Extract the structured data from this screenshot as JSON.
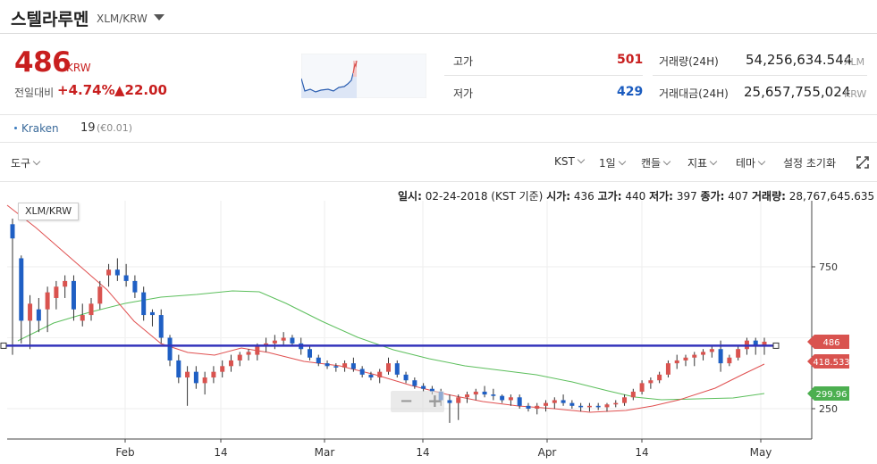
{
  "header": {
    "coin_name": "스텔라루멘",
    "pair": "XLM/KRW"
  },
  "price": {
    "current": "486",
    "unit": "KRW",
    "change_label": "전일대비",
    "change_rate": "+4.74%",
    "change_amount": "▲22.00"
  },
  "stats": {
    "high_label": "고가",
    "high_value": "501",
    "low_label": "저가",
    "low_value": "429",
    "volume_label": "거래량(24H)",
    "volume_value": "54,256,634.544",
    "volume_unit": "XLM",
    "amount_label": "거래대금(24H)",
    "amount_value": "25,657,755,024",
    "amount_unit": "KRW"
  },
  "exchange": {
    "name": "Kraken",
    "price": "19",
    "sub": "(€0.01)"
  },
  "toolbar": {
    "tools": "도구",
    "timezone": "KST",
    "interval": "1일",
    "style": "캔들",
    "indicator": "지표",
    "theme": "테마",
    "reset": "설정 초기화"
  },
  "info_bar": {
    "date_label": "일시:",
    "date": "02-24-2018 (KST 기준)",
    "open_label": "시가:",
    "open": "436",
    "high_label": "고가:",
    "high": "440",
    "low_label": "저가:",
    "low": "397",
    "close_label": "종가:",
    "close": "407",
    "volume_label": "거래량:",
    "volume": "28,767,645.635"
  },
  "colors": {
    "up": "#d9534f",
    "down": "#1f5fc4",
    "ma_short": "#e05050",
    "ma_long": "#5cbf5c",
    "hline": "#3333bb"
  },
  "icons": {
    "expand": "expand-icon",
    "dropdown": "chevron-down-icon"
  },
  "chart_data": {
    "type": "candlestick",
    "symbol_label": "XLM/KRW",
    "y_ticks": [
      750,
      250
    ],
    "x_ticks": [
      "Feb",
      "14",
      "Mar",
      "14",
      "Apr",
      "14",
      "May"
    ],
    "price_line": 472,
    "badges": [
      {
        "value": "486",
        "color": "#d9534f"
      },
      {
        "value": "418.533",
        "color": "#d9534f"
      },
      {
        "value": "299.96",
        "color": "#4caf50"
      }
    ],
    "ohlc": [
      [
        900,
        920,
        440,
        850
      ],
      [
        780,
        790,
        480,
        560
      ],
      [
        560,
        650,
        460,
        620
      ],
      [
        600,
        640,
        520,
        560
      ],
      [
        600,
        680,
        520,
        660
      ],
      [
        640,
        700,
        600,
        680
      ],
      [
        680,
        720,
        640,
        700
      ],
      [
        700,
        720,
        560,
        600
      ],
      [
        560,
        620,
        540,
        580
      ],
      [
        580,
        640,
        560,
        620
      ],
      [
        620,
        700,
        600,
        680
      ],
      [
        720,
        760,
        680,
        740
      ],
      [
        740,
        780,
        700,
        720
      ],
      [
        720,
        760,
        680,
        700
      ],
      [
        700,
        720,
        640,
        660
      ],
      [
        660,
        680,
        560,
        580
      ],
      [
        590,
        600,
        540,
        580
      ],
      [
        580,
        600,
        480,
        500
      ],
      [
        500,
        510,
        400,
        420
      ],
      [
        420,
        440,
        340,
        360
      ],
      [
        360,
        400,
        260,
        380
      ],
      [
        380,
        400,
        320,
        340
      ],
      [
        340,
        380,
        300,
        360
      ],
      [
        360,
        400,
        340,
        380
      ],
      [
        380,
        420,
        360,
        400
      ],
      [
        400,
        440,
        380,
        420
      ],
      [
        420,
        450,
        400,
        440
      ],
      [
        440,
        460,
        420,
        450
      ],
      [
        440,
        480,
        420,
        470
      ],
      [
        470,
        500,
        450,
        480
      ],
      [
        480,
        510,
        460,
        490
      ],
      [
        490,
        520,
        470,
        500
      ],
      [
        500,
        510,
        470,
        480
      ],
      [
        480,
        500,
        440,
        460
      ],
      [
        460,
        470,
        420,
        430
      ],
      [
        430,
        440,
        400,
        410
      ],
      [
        410,
        420,
        390,
        400
      ],
      [
        400,
        410,
        380,
        395
      ],
      [
        395,
        420,
        380,
        410
      ],
      [
        410,
        430,
        380,
        390
      ],
      [
        390,
        400,
        360,
        370
      ],
      [
        370,
        380,
        350,
        360
      ],
      [
        360,
        390,
        340,
        380
      ],
      [
        380,
        430,
        370,
        410
      ],
      [
        410,
        420,
        360,
        370
      ],
      [
        370,
        380,
        340,
        350
      ],
      [
        350,
        360,
        320,
        330
      ],
      [
        330,
        340,
        310,
        320
      ],
      [
        320,
        330,
        300,
        310
      ],
      [
        310,
        320,
        260,
        280
      ],
      [
        280,
        300,
        200,
        270
      ],
      [
        270,
        300,
        210,
        290
      ],
      [
        290,
        310,
        270,
        300
      ],
      [
        300,
        320,
        280,
        310
      ],
      [
        310,
        330,
        290,
        300
      ],
      [
        300,
        320,
        280,
        295
      ],
      [
        295,
        300,
        270,
        280
      ],
      [
        280,
        300,
        260,
        290
      ],
      [
        290,
        300,
        250,
        260
      ],
      [
        260,
        270,
        240,
        250
      ],
      [
        250,
        270,
        230,
        260
      ],
      [
        260,
        280,
        240,
        270
      ],
      [
        270,
        290,
        250,
        280
      ],
      [
        280,
        300,
        260,
        270
      ],
      [
        270,
        280,
        250,
        260
      ],
      [
        260,
        270,
        240,
        255
      ],
      [
        255,
        270,
        240,
        260
      ],
      [
        260,
        270,
        245,
        255
      ],
      [
        255,
        270,
        240,
        265
      ],
      [
        265,
        280,
        255,
        270
      ],
      [
        270,
        300,
        260,
        290
      ],
      [
        290,
        320,
        280,
        310
      ],
      [
        310,
        350,
        300,
        340
      ],
      [
        340,
        360,
        320,
        350
      ],
      [
        350,
        380,
        340,
        370
      ],
      [
        370,
        420,
        360,
        410
      ],
      [
        410,
        440,
        390,
        420
      ],
      [
        420,
        440,
        400,
        430
      ],
      [
        430,
        450,
        400,
        440
      ],
      [
        440,
        460,
        420,
        450
      ],
      [
        450,
        470,
        430,
        460
      ],
      [
        460,
        490,
        380,
        410
      ],
      [
        410,
        440,
        400,
        430
      ],
      [
        430,
        470,
        420,
        460
      ],
      [
        460,
        500,
        440,
        490
      ],
      [
        490,
        500,
        440,
        470
      ],
      [
        470,
        500,
        440,
        486
      ]
    ],
    "ma_short": [
      [
        8,
        230
      ],
      [
        40,
        255
      ],
      [
        80,
        290
      ],
      [
        120,
        325
      ],
      [
        150,
        360
      ],
      [
        180,
        385
      ],
      [
        210,
        395
      ],
      [
        240,
        398
      ],
      [
        270,
        390
      ],
      [
        300,
        395
      ],
      [
        340,
        405
      ],
      [
        380,
        410
      ],
      [
        420,
        420
      ],
      [
        460,
        432
      ],
      [
        500,
        442
      ],
      [
        540,
        450
      ],
      [
        580,
        455
      ],
      [
        620,
        458
      ],
      [
        660,
        462
      ],
      [
        700,
        460
      ],
      [
        730,
        455
      ],
      [
        760,
        448
      ],
      [
        800,
        435
      ],
      [
        830,
        420
      ],
      [
        855,
        408
      ]
    ],
    "ma_long": [
      [
        20,
        382
      ],
      [
        60,
        362
      ],
      [
        100,
        350
      ],
      [
        140,
        340
      ],
      [
        180,
        333
      ],
      [
        220,
        330
      ],
      [
        260,
        326
      ],
      [
        290,
        327
      ],
      [
        320,
        340
      ],
      [
        360,
        360
      ],
      [
        400,
        378
      ],
      [
        440,
        392
      ],
      [
        480,
        402
      ],
      [
        520,
        410
      ],
      [
        560,
        415
      ],
      [
        600,
        420
      ],
      [
        640,
        428
      ],
      [
        680,
        438
      ],
      [
        710,
        445
      ],
      [
        740,
        448
      ],
      [
        780,
        447
      ],
      [
        820,
        446
      ],
      [
        855,
        441
      ]
    ]
  }
}
